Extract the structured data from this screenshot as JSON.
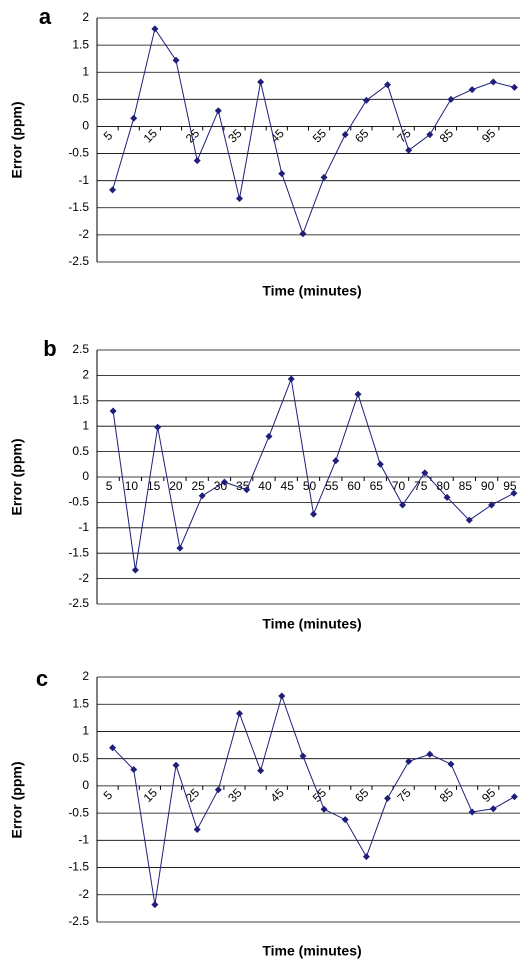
{
  "chart_data": [
    {
      "type": "line",
      "panel_label": "a",
      "y_label": "Error (ppm)",
      "x_label": "Time (minutes)",
      "categories": [
        "5",
        null,
        "15",
        null,
        "25",
        null,
        "35",
        null,
        "45",
        null,
        "55",
        null,
        "65",
        null,
        "75",
        null,
        "85",
        null,
        "95",
        null
      ],
      "values": [
        -1.17,
        0.15,
        1.8,
        1.22,
        -0.63,
        0.29,
        -1.33,
        0.82,
        -0.87,
        -1.98,
        -0.94,
        -0.15,
        0.48,
        0.77,
        -0.44,
        -0.15,
        0.5,
        0.68,
        0.82,
        0.72
      ],
      "color": "#1f1f7a",
      "ylim": [
        -2.5,
        2
      ],
      "yticks": [
        -2.5,
        -2,
        -1.5,
        -1,
        -0.5,
        0,
        0.5,
        1,
        1.5,
        2
      ],
      "grid": true,
      "rotate_labels": true
    },
    {
      "type": "line",
      "panel_label": "b",
      "y_label": "Error (ppm)",
      "x_label": "Time (minutes)",
      "categories": [
        "5",
        "10",
        "15",
        "20",
        "25",
        "30",
        "35",
        "40",
        "45",
        "50",
        "55",
        "60",
        "65",
        "70",
        "75",
        "80",
        "85",
        "90",
        "95"
      ],
      "values": [
        1.3,
        -1.83,
        0.98,
        -1.4,
        -0.37,
        -0.1,
        -0.25,
        0.8,
        1.93,
        -0.73,
        0.32,
        1.63,
        0.25,
        -0.55,
        0.08,
        -0.4,
        -0.85,
        -0.55,
        -0.32
      ],
      "color": "#1f1f7a",
      "ylim": [
        -2.5,
        2.5
      ],
      "yticks": [
        -2.5,
        -2,
        -1.5,
        -1,
        -0.5,
        0,
        0.5,
        1,
        1.5,
        2,
        2.5
      ],
      "grid": true,
      "rotate_labels": false
    },
    {
      "type": "line",
      "panel_label": "c",
      "y_label": "Error (ppm)",
      "x_label": "Time (minutes)",
      "categories": [
        "5",
        null,
        "15",
        null,
        "25",
        null,
        "35",
        null,
        "45",
        null,
        "55",
        null,
        "65",
        null,
        "75",
        null,
        "85",
        null,
        "95",
        null
      ],
      "values": [
        0.7,
        0.3,
        -2.18,
        0.38,
        -0.8,
        -0.07,
        1.33,
        0.28,
        1.65,
        0.55,
        -0.43,
        -0.62,
        -1.3,
        -0.23,
        0.45,
        0.58,
        0.4,
        -0.48,
        -0.42,
        -0.2
      ],
      "color": "#1f1f7a",
      "ylim": [
        -2.5,
        2
      ],
      "yticks": [
        -2.5,
        -2,
        -1.5,
        -1,
        -0.5,
        0,
        0.5,
        1,
        1.5,
        2
      ],
      "grid": true,
      "rotate_labels": true
    }
  ]
}
